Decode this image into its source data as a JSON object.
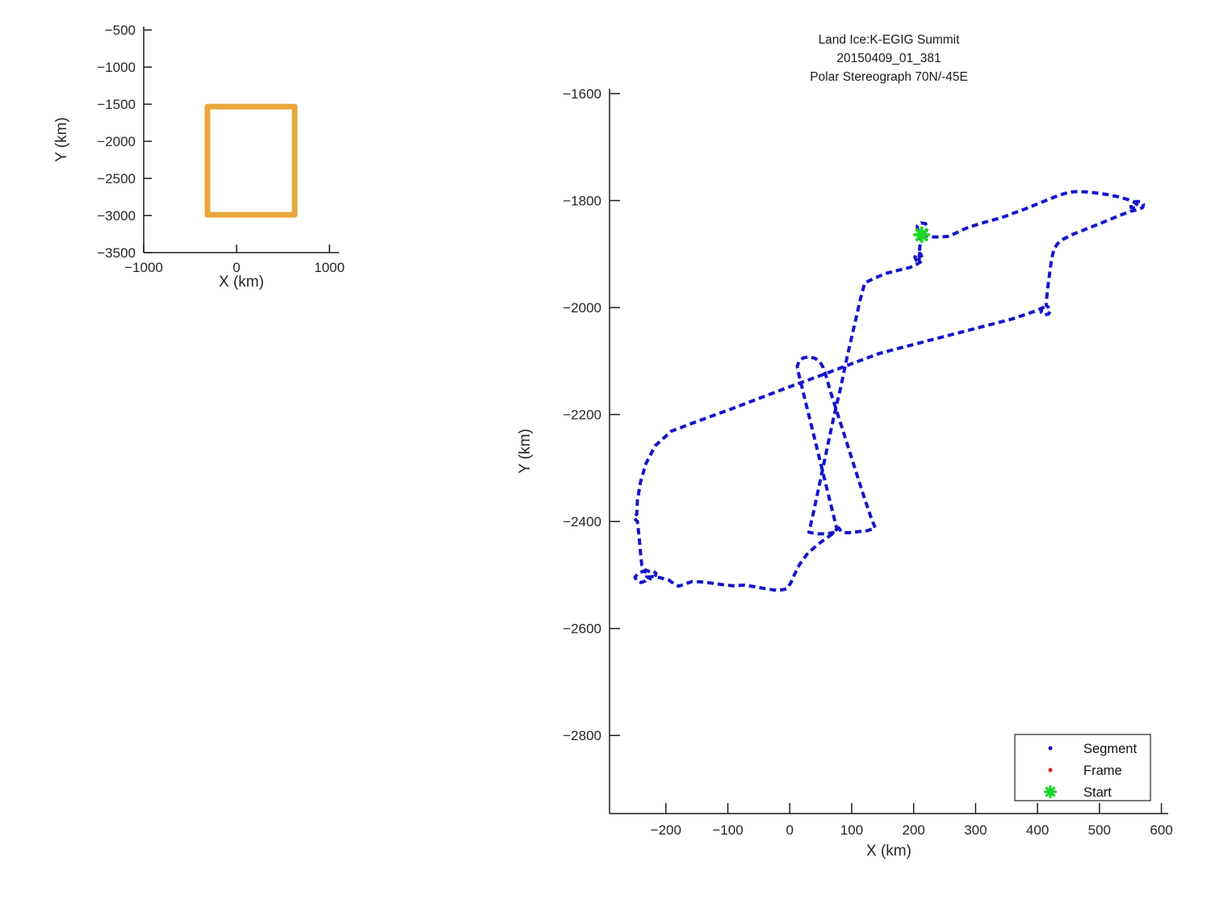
{
  "figure": {
    "background": "#ffffff"
  },
  "chart_data": [
    {
      "id": "overview-map",
      "type": "line",
      "xlabel": "X (km)",
      "ylabel": "Y (km)",
      "xlim": [
        -1000,
        1104
      ],
      "ylim": [
        -3500,
        -455
      ],
      "xticks": [
        -1000,
        0,
        1000
      ],
      "yticks": [
        -500,
        -1000,
        -1500,
        -2000,
        -2500,
        -3000,
        -3500
      ],
      "grid": false,
      "series": [
        {
          "name": "coverage-box",
          "color": "#E9A63C",
          "line_width": 7,
          "closed": true,
          "points": [
            [
              -313,
              -1533
            ],
            [
              626,
              -1533
            ],
            [
              626,
              -2990
            ],
            [
              -313,
              -2990
            ]
          ]
        }
      ]
    },
    {
      "id": "flight-track",
      "type": "scatter",
      "title_lines": [
        "Land Ice:K-EGIG Summit",
        "20150409_01_381",
        "Polar Stereograph 70N/-45E"
      ],
      "xlabel": "X (km)",
      "ylabel": "Y (km)",
      "xlim": [
        -291,
        611
      ],
      "ylim": [
        -2946,
        -1591
      ],
      "xticks": [
        -200,
        -100,
        0,
        100,
        200,
        300,
        400,
        500,
        600
      ],
      "yticks": [
        -1600,
        -1800,
        -2000,
        -2200,
        -2400,
        -2600,
        -2800
      ],
      "grid": false,
      "legend_position": "southeast",
      "legend": [
        {
          "label": "Segment",
          "marker": "dot",
          "color": "#1414CC"
        },
        {
          "label": "Frame",
          "marker": "dot",
          "color": "#DD2222"
        },
        {
          "label": "Start",
          "marker": "asterisk",
          "color": "#1FD62A"
        }
      ],
      "series": [
        {
          "name": "Segment",
          "color": "#1414CC",
          "style": "dotted",
          "line_width": 4,
          "points": [
            [
              213,
              -1864
            ],
            [
              224,
              -1866
            ],
            [
              232,
              -1868
            ],
            [
              244,
              -1868
            ],
            [
              255,
              -1867
            ],
            [
              266,
              -1862
            ],
            [
              278,
              -1855
            ],
            [
              291,
              -1849
            ],
            [
              305,
              -1844
            ],
            [
              322,
              -1838
            ],
            [
              342,
              -1832
            ],
            [
              360,
              -1824
            ],
            [
              377,
              -1817
            ],
            [
              394,
              -1809
            ],
            [
              411,
              -1801
            ],
            [
              428,
              -1793
            ],
            [
              443,
              -1787
            ],
            [
              455,
              -1784
            ],
            [
              466,
              -1783
            ],
            [
              480,
              -1784
            ],
            [
              497,
              -1786
            ],
            [
              514,
              -1789
            ],
            [
              531,
              -1793
            ],
            [
              546,
              -1798
            ],
            [
              556,
              -1803
            ],
            [
              562,
              -1809
            ],
            [
              558,
              -1814
            ],
            [
              551,
              -1813
            ],
            [
              551,
              -1807
            ],
            [
              558,
              -1802
            ],
            [
              566,
              -1802
            ],
            [
              571,
              -1807
            ],
            [
              570,
              -1813
            ],
            [
              562,
              -1817
            ],
            [
              550,
              -1820
            ],
            [
              530,
              -1829
            ],
            [
              505,
              -1841
            ],
            [
              479,
              -1853
            ],
            [
              457,
              -1863
            ],
            [
              442,
              -1872
            ],
            [
              432,
              -1881
            ],
            [
              427,
              -1890
            ],
            [
              423,
              -1907
            ],
            [
              420,
              -1932
            ],
            [
              417,
              -1958
            ],
            [
              415,
              -1980
            ],
            [
              414,
              -1996
            ],
            [
              418,
              -2000
            ],
            [
              421,
              -2006
            ],
            [
              418,
              -2012
            ],
            [
              411,
              -2014
            ],
            [
              406,
              -2009
            ],
            [
              407,
              -2001
            ],
            [
              413,
              -1998
            ],
            [
              398,
              -2006
            ],
            [
              360,
              -2021
            ],
            [
              320,
              -2033
            ],
            [
              280,
              -2045
            ],
            [
              240,
              -2057
            ],
            [
              200,
              -2069
            ],
            [
              170,
              -2078
            ],
            [
              144,
              -2086
            ],
            [
              100,
              -2105
            ],
            [
              50,
              -2127
            ],
            [
              0,
              -2148
            ],
            [
              -50,
              -2170
            ],
            [
              -100,
              -2192
            ],
            [
              -150,
              -2213
            ],
            [
              -191,
              -2231
            ],
            [
              -217,
              -2258
            ],
            [
              -232,
              -2291
            ],
            [
              -241,
              -2326
            ],
            [
              -246,
              -2361
            ],
            [
              -247,
              -2386
            ],
            [
              -252,
              -2393
            ],
            [
              -246,
              -2400
            ],
            [
              -243,
              -2431
            ],
            [
              -241,
              -2459
            ],
            [
              -239,
              -2481
            ],
            [
              -235,
              -2490
            ],
            [
              -228,
              -2493
            ],
            [
              -221,
              -2492
            ],
            [
              -216,
              -2497
            ],
            [
              -218,
              -2504
            ],
            [
              -225,
              -2507
            ],
            [
              -231,
              -2503
            ],
            [
              -230,
              -2495
            ],
            [
              -237,
              -2493
            ],
            [
              -245,
              -2497
            ],
            [
              -250,
              -2504
            ],
            [
              -247,
              -2511
            ],
            [
              -240,
              -2514
            ],
            [
              -233,
              -2511
            ],
            [
              -230,
              -2504
            ],
            [
              -222,
              -2503
            ],
            [
              -210,
              -2505
            ],
            [
              -196,
              -2509
            ],
            [
              -186,
              -2517
            ],
            [
              -179,
              -2521
            ],
            [
              -170,
              -2517
            ],
            [
              -157,
              -2512
            ],
            [
              -143,
              -2513
            ],
            [
              -127,
              -2515
            ],
            [
              -109,
              -2518
            ],
            [
              -92,
              -2520
            ],
            [
              -74,
              -2519
            ],
            [
              -56,
              -2522
            ],
            [
              -37,
              -2526
            ],
            [
              -19,
              -2529
            ],
            [
              -5,
              -2526
            ],
            [
              2,
              -2514
            ],
            [
              8,
              -2498
            ],
            [
              16,
              -2480
            ],
            [
              28,
              -2461
            ],
            [
              44,
              -2444
            ],
            [
              58,
              -2432
            ],
            [
              69,
              -2423
            ],
            [
              76,
              -2414
            ],
            [
              67,
              -2372
            ],
            [
              53,
              -2306
            ],
            [
              39,
              -2240
            ],
            [
              25,
              -2174
            ],
            [
              14,
              -2122
            ],
            [
              12,
              -2110
            ],
            [
              15,
              -2100
            ],
            [
              22,
              -2094
            ],
            [
              31,
              -2092
            ],
            [
              41,
              -2095
            ],
            [
              49,
              -2102
            ],
            [
              54,
              -2112
            ],
            [
              57,
              -2122
            ],
            [
              66,
              -2158
            ],
            [
              77,
              -2198
            ],
            [
              88,
              -2238
            ],
            [
              99,
              -2278
            ],
            [
              110,
              -2318
            ],
            [
              121,
              -2358
            ],
            [
              131,
              -2392
            ],
            [
              138,
              -2412
            ],
            [
              126,
              -2417
            ],
            [
              110,
              -2419
            ],
            [
              94,
              -2421
            ],
            [
              84,
              -2420
            ],
            [
              79,
              -2412
            ],
            [
              74,
              -2420
            ],
            [
              59,
              -2423
            ],
            [
              44,
              -2423
            ],
            [
              31,
              -2420
            ],
            [
              37,
              -2390
            ],
            [
              48,
              -2330
            ],
            [
              59,
              -2270
            ],
            [
              70,
              -2210
            ],
            [
              82,
              -2150
            ],
            [
              93,
              -2090
            ],
            [
              105,
              -2030
            ],
            [
              114,
              -1984
            ],
            [
              121,
              -1954
            ],
            [
              137,
              -1945
            ],
            [
              156,
              -1936
            ],
            [
              176,
              -1930
            ],
            [
              194,
              -1925
            ],
            [
              205,
              -1919
            ],
            [
              211,
              -1915
            ],
            [
              214,
              -1907
            ],
            [
              211,
              -1899
            ],
            [
              205,
              -1898
            ],
            [
              202,
              -1906
            ],
            [
              205,
              -1913
            ],
            [
              209,
              -1916
            ],
            [
              209,
              -1897
            ],
            [
              210,
              -1886
            ],
            [
              211,
              -1874
            ],
            [
              212,
              -1866
            ],
            [
              213,
              -1864
            ],
            [
              211,
              -1859
            ],
            [
              206,
              -1854
            ],
            [
              206,
              -1847
            ],
            [
              212,
              -1842
            ],
            [
              219,
              -1843
            ],
            [
              223,
              -1850
            ],
            [
              220,
              -1857
            ],
            [
              214,
              -1861
            ]
          ]
        },
        {
          "name": "Frame",
          "color": "#DD2222",
          "style": "dotted",
          "points": []
        },
        {
          "name": "Start",
          "color": "#1FD62A",
          "marker": "asterisk",
          "points": [
            [
              213,
              -1864
            ]
          ]
        }
      ]
    }
  ]
}
